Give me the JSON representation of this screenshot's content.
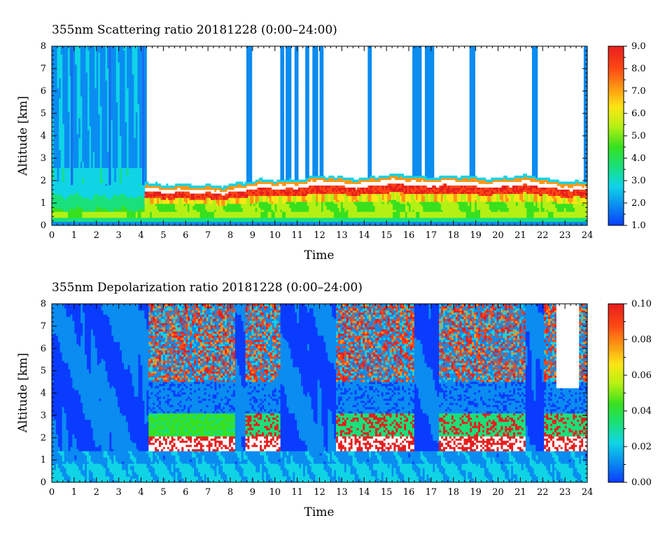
{
  "chart_data": [
    {
      "type": "heatmap",
      "title": "355nm Scattering ratio  20181228 (0:00–24:00)",
      "xlabel": "Time",
      "ylabel": "Altitude [km]",
      "xlim": [
        0,
        24
      ],
      "ylim": [
        0,
        8
      ],
      "x_ticks": [
        "0",
        "1",
        "2",
        "3",
        "4",
        "5",
        "6",
        "7",
        "8",
        "9",
        "10",
        "11",
        "12",
        "13",
        "14",
        "15",
        "16",
        "17",
        "18",
        "19",
        "20",
        "21",
        "22",
        "23",
        "24"
      ],
      "y_ticks": [
        "0",
        "1",
        "2",
        "3",
        "4",
        "5",
        "6",
        "7",
        "8"
      ],
      "colorbar": {
        "range": [
          1.0,
          9.0
        ],
        "ticks": [
          "1.0",
          "2.0",
          "3.0",
          "4.0",
          "5.0",
          "6.0",
          "7.0",
          "8.0",
          "9.0"
        ],
        "colors": [
          "#0a3cff",
          "#0a8cf0",
          "#10d4e6",
          "#19e07a",
          "#38e01e",
          "#b4f014",
          "#fae614",
          "#ff9614",
          "#ff4614",
          "#e61e1e"
        ]
      },
      "description_values": {
        "clear_sky": "white (no data above cloud/aerosol top after 04:10)",
        "boundary_layer_top_km": [
          {
            "time": 0,
            "top": 1.8
          },
          {
            "time": 4.2,
            "top": 1.7
          },
          {
            "time": 6,
            "top": 1.5
          },
          {
            "time": 8,
            "top": 1.6
          },
          {
            "time": 10,
            "top": 1.8
          },
          {
            "time": 12,
            "top": 1.9
          },
          {
            "time": 14,
            "top": 1.9
          },
          {
            "time": 16,
            "top": 2.0
          },
          {
            "time": 18,
            "top": 1.9
          },
          {
            "time": 20,
            "top": 1.9
          },
          {
            "time": 22,
            "top": 1.9
          },
          {
            "time": 24,
            "top": 1.6
          }
        ],
        "cirrus_columns_hours": [
          0.9,
          2.6,
          4.1,
          8.8,
          10.3,
          10.55,
          10.95,
          11.4,
          11.75,
          12.05,
          14.2,
          16.25,
          16.45,
          16.75,
          16.95,
          18.8,
          21.6,
          23.9
        ]
      }
    },
    {
      "type": "heatmap",
      "title": "355nm Depolarization ratio  20181228 (0:00–24:00)",
      "xlabel": "Time",
      "ylabel": "Altitude [km]",
      "xlim": [
        0,
        24
      ],
      "ylim": [
        0,
        8
      ],
      "x_ticks": [
        "0",
        "1",
        "2",
        "3",
        "4",
        "5",
        "6",
        "7",
        "8",
        "9",
        "10",
        "11",
        "12",
        "13",
        "14",
        "15",
        "16",
        "17",
        "18",
        "19",
        "20",
        "21",
        "22",
        "23",
        "24"
      ],
      "y_ticks": [
        "0",
        "1",
        "2",
        "3",
        "4",
        "5",
        "6",
        "7",
        "8"
      ],
      "colorbar": {
        "range": [
          0.0,
          0.1
        ],
        "ticks": [
          "0.00",
          "0.02",
          "0.04",
          "0.06",
          "0.08",
          "0.10"
        ],
        "colors": [
          "#0a3cff",
          "#0a8cf0",
          "#10d4e6",
          "#19e07a",
          "#38e01e",
          "#b4f014",
          "#fae614",
          "#ff9614",
          "#ff4614",
          "#e61e1e"
        ]
      },
      "description_values": {
        "high_depol_layer_km": [
          4.5,
          8.0
        ],
        "mid_layer_km": [
          2.0,
          3.0
        ],
        "active_intervals_hours": [
          [
            4.3,
            8.2
          ],
          [
            8.6,
            10.2
          ],
          [
            12.7,
            16.2
          ],
          [
            17.3,
            21.2
          ],
          [
            22.0,
            24.0
          ]
        ]
      }
    }
  ]
}
